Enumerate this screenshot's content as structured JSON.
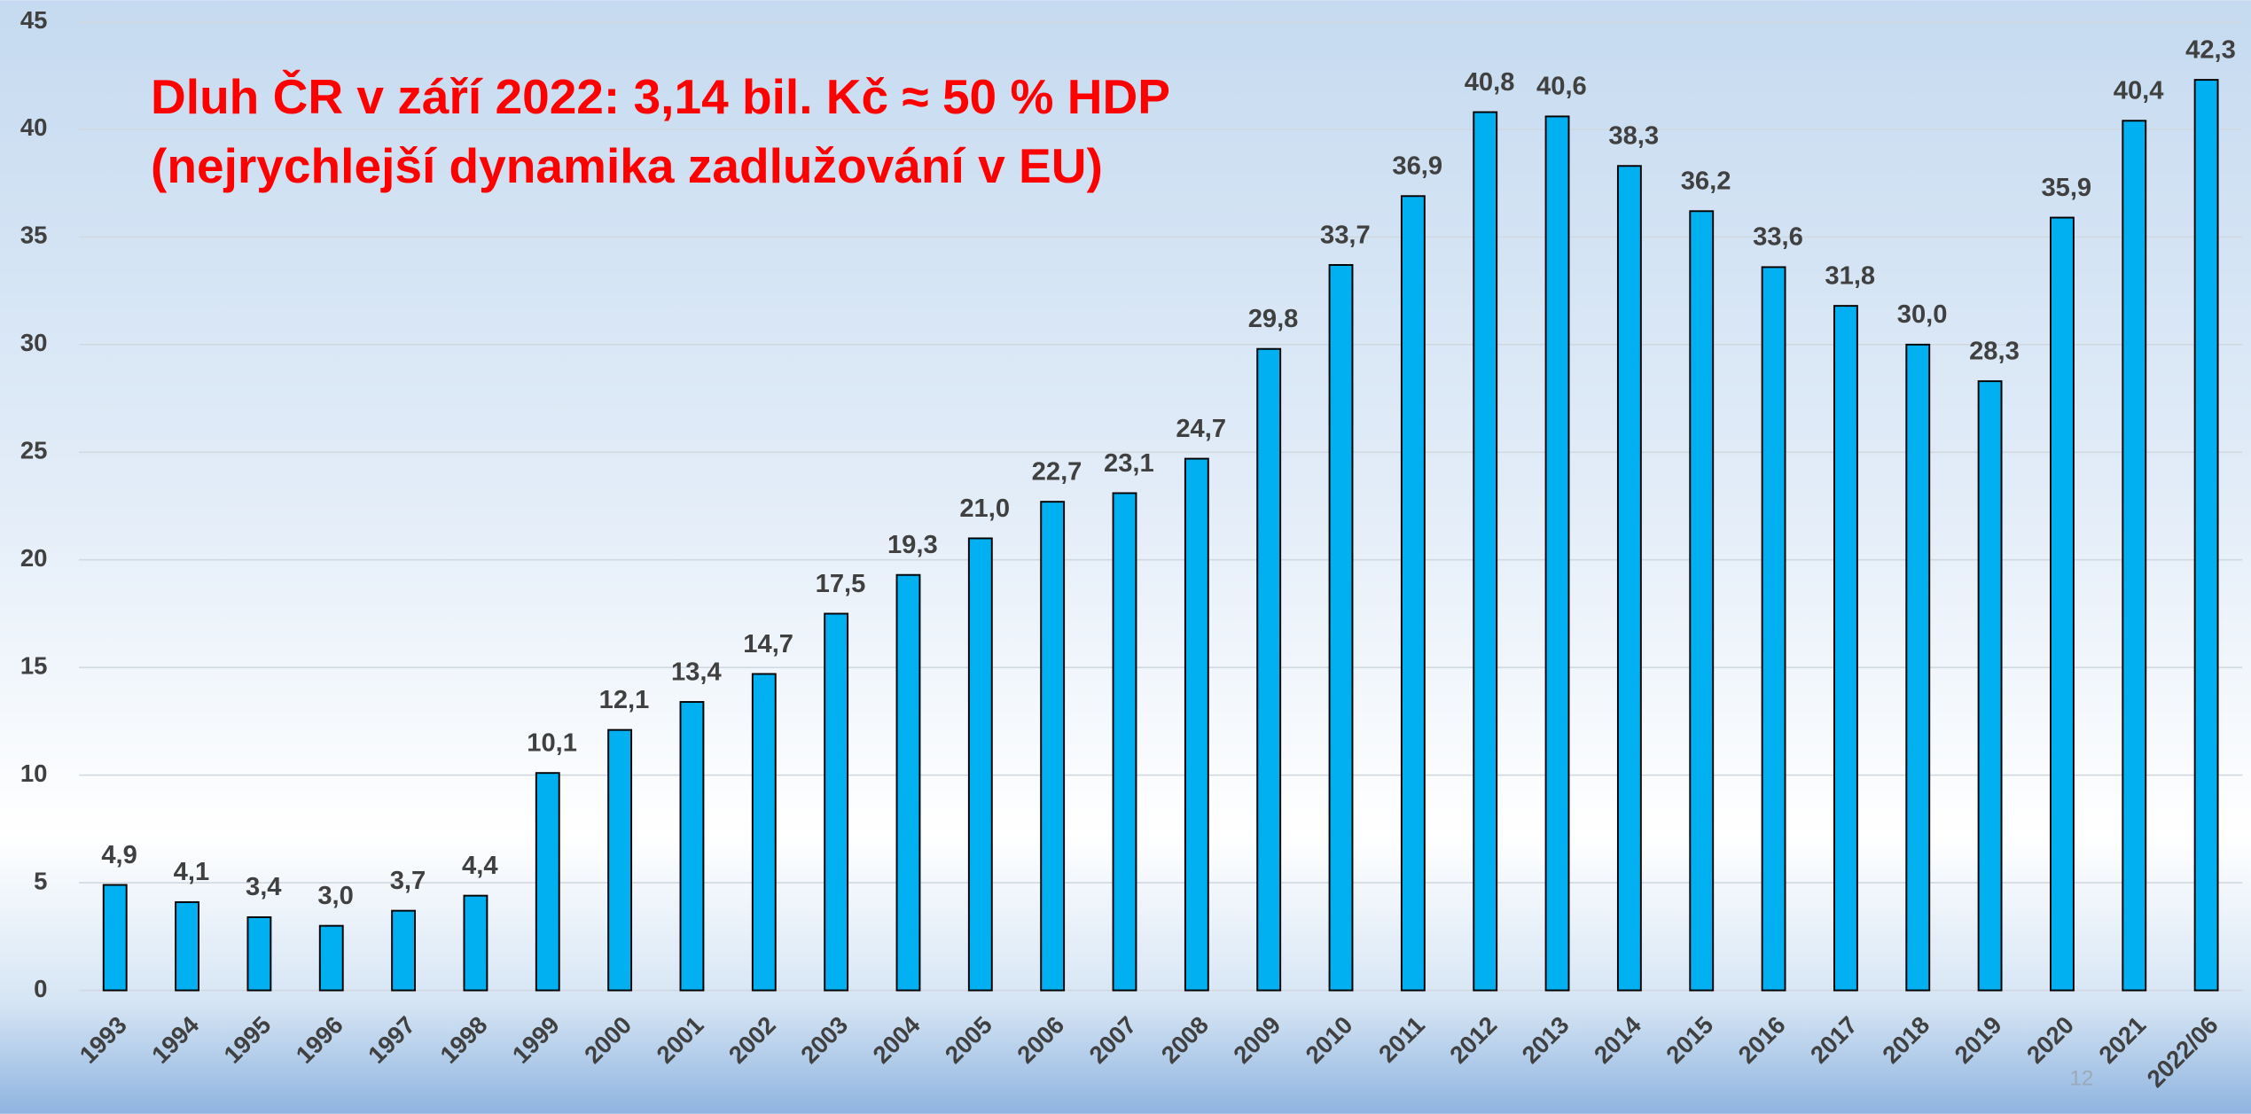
{
  "chart_data": {
    "type": "bar",
    "title": [
      "Dluh ČR v září 2022: 3,14 bil. Kč ≈ 50 % HDP",
      "(nejrychlejší dynamika zadlužování v EU)"
    ],
    "categories": [
      "1993",
      "1994",
      "1995",
      "1996",
      "1997",
      "1998",
      "1999",
      "2000",
      "2001",
      "2002",
      "2003",
      "2004",
      "2005",
      "2006",
      "2007",
      "2008",
      "2009",
      "2010",
      "2011",
      "2012",
      "2013",
      "2014",
      "2015",
      "2016",
      "2017",
      "2018",
      "2019",
      "2020",
      "2021",
      "2022/06"
    ],
    "values": [
      4.9,
      4.1,
      3.4,
      3.0,
      3.7,
      4.4,
      10.1,
      12.1,
      13.4,
      14.7,
      17.5,
      19.3,
      21.0,
      22.7,
      23.1,
      24.7,
      29.8,
      33.7,
      36.9,
      40.8,
      40.6,
      38.3,
      36.2,
      33.6,
      31.8,
      30.0,
      28.3,
      35.9,
      40.4,
      42.3
    ],
    "value_labels": [
      "4,9",
      "4,1",
      "3,4",
      "3,0",
      "3,7",
      "4,4",
      "10,1",
      "12,1",
      "13,4",
      "14,7",
      "17,5",
      "19,3",
      "21,0",
      "22,7",
      "23,1",
      "24,7",
      "29,8",
      "33,7",
      "36,9",
      "40,8",
      "40,6",
      "38,3",
      "36,2",
      "33,6",
      "31,8",
      "30,0",
      "28,3",
      "35,9",
      "40,4",
      "42,3"
    ],
    "color": "#00b0f0",
    "ylim": [
      0,
      45
    ],
    "yticks": [
      0,
      5,
      10,
      15,
      20,
      25,
      30,
      35,
      40,
      45
    ],
    "grid": true,
    "annotations": [
      "12"
    ]
  }
}
